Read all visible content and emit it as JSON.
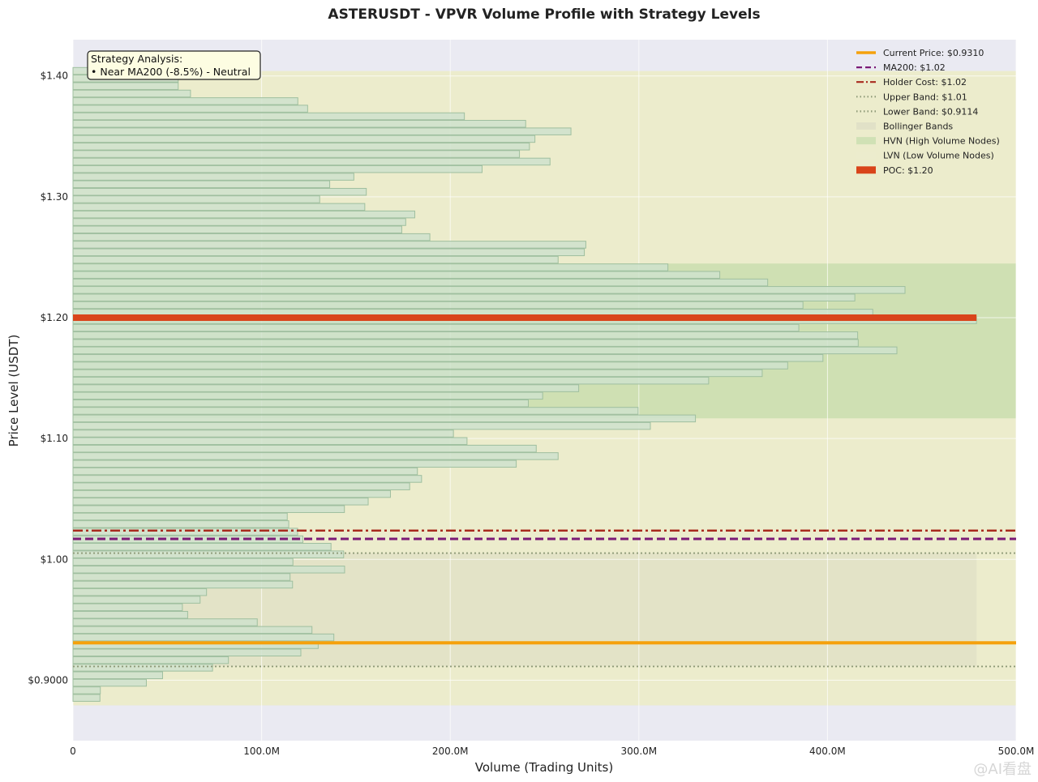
{
  "chart_data": {
    "type": "bar",
    "orientation": "horizontal",
    "title": "ASTERUSDT - VPVR Volume Profile with Strategy Levels",
    "xlabel": "Volume (Trading Units)",
    "ylabel": "Price Level (USDT)",
    "xlim": [
      0,
      500
    ],
    "ylim": [
      0.85,
      1.43
    ],
    "x_unit": "M",
    "x_ticks": [
      {
        "value": 0,
        "label": "0"
      },
      {
        "value": 100,
        "label": "100.0M"
      },
      {
        "value": 200,
        "label": "200.0M"
      },
      {
        "value": 300,
        "label": "300.0M"
      },
      {
        "value": 400,
        "label": "400.0M"
      },
      {
        "value": 500,
        "label": "500.0M"
      }
    ],
    "y_ticks": [
      {
        "value": 0.9,
        "label": "$0.9000"
      },
      {
        "value": 1.0,
        "label": "$1.00"
      },
      {
        "value": 1.1,
        "label": "$1.10"
      },
      {
        "value": 1.2,
        "label": "$1.20"
      },
      {
        "value": 1.3,
        "label": "$1.30"
      },
      {
        "value": 1.4,
        "label": "$1.40"
      }
    ],
    "grid": true,
    "legend_position": "top-right",
    "colors": {
      "plot_bg": "#eaeaf2",
      "lvn": "#ececcc",
      "hvn": "#cfe0b3",
      "bollinger": "#e0e0c6",
      "bar_fill": "#cfe2cd",
      "bar_stroke": "#9fbf9f",
      "current_price": "#f5a10c",
      "ma200": "#7b1a76",
      "holder_cost": "#a82a1e",
      "bands": "#8f9a78",
      "poc": "#d9441a"
    },
    "bin_height": 0.00625,
    "bins": [
      {
        "price": 0.8823,
        "volume": 14.3
      },
      {
        "price": 0.8885,
        "volume": 14.5
      },
      {
        "price": 0.8948,
        "volume": 38.9
      },
      {
        "price": 0.901,
        "volume": 47.5
      },
      {
        "price": 0.9073,
        "volume": 74.0
      },
      {
        "price": 0.9135,
        "volume": 82.4
      },
      {
        "price": 0.9198,
        "volume": 120.8
      },
      {
        "price": 0.926,
        "volume": 130.0
      },
      {
        "price": 0.9323,
        "volume": 138.3
      },
      {
        "price": 0.9385,
        "volume": 126.7
      },
      {
        "price": 0.9448,
        "volume": 97.7
      },
      {
        "price": 0.951,
        "volume": 60.8
      },
      {
        "price": 0.9573,
        "volume": 58.0
      },
      {
        "price": 0.9635,
        "volume": 67.4
      },
      {
        "price": 0.9698,
        "volume": 70.8
      },
      {
        "price": 0.976,
        "volume": 116.4
      },
      {
        "price": 0.9823,
        "volume": 115.1
      },
      {
        "price": 0.9885,
        "volume": 144.0
      },
      {
        "price": 0.9948,
        "volume": 116.6
      },
      {
        "price": 1.001,
        "volume": 143.5
      },
      {
        "price": 1.0073,
        "volume": 136.8
      },
      {
        "price": 1.0135,
        "volume": 121.9
      },
      {
        "price": 1.0198,
        "volume": 119.1
      },
      {
        "price": 1.026,
        "volume": 114.4
      },
      {
        "price": 1.0323,
        "volume": 113.6
      },
      {
        "price": 1.0385,
        "volume": 143.9
      },
      {
        "price": 1.0448,
        "volume": 156.5
      },
      {
        "price": 1.051,
        "volume": 168.3
      },
      {
        "price": 1.0573,
        "volume": 178.5
      },
      {
        "price": 1.0635,
        "volume": 184.8
      },
      {
        "price": 1.0698,
        "volume": 182.6
      },
      {
        "price": 1.076,
        "volume": 235.0
      },
      {
        "price": 1.0823,
        "volume": 257.2
      },
      {
        "price": 1.0885,
        "volume": 245.6
      },
      {
        "price": 1.0948,
        "volume": 208.9
      },
      {
        "price": 1.101,
        "volume": 201.7
      },
      {
        "price": 1.1073,
        "volume": 306.1
      },
      {
        "price": 1.1135,
        "volume": 330.0
      },
      {
        "price": 1.1198,
        "volume": 299.6
      },
      {
        "price": 1.126,
        "volume": 241.4
      },
      {
        "price": 1.1323,
        "volume": 249.0
      },
      {
        "price": 1.1385,
        "volume": 268.1
      },
      {
        "price": 1.1448,
        "volume": 337.0
      },
      {
        "price": 1.151,
        "volume": 365.4
      },
      {
        "price": 1.1573,
        "volume": 378.9
      },
      {
        "price": 1.1635,
        "volume": 397.6
      },
      {
        "price": 1.1698,
        "volume": 436.8
      },
      {
        "price": 1.176,
        "volume": 416.3
      },
      {
        "price": 1.1823,
        "volume": 416.0
      },
      {
        "price": 1.1885,
        "volume": 384.8
      },
      {
        "price": 1.1948,
        "volume": 479.0
      },
      {
        "price": 1.201,
        "volume": 424.0
      },
      {
        "price": 1.2073,
        "volume": 387.0
      },
      {
        "price": 1.2135,
        "volume": 414.5
      },
      {
        "price": 1.2198,
        "volume": 441.1
      },
      {
        "price": 1.226,
        "volume": 368.3
      },
      {
        "price": 1.2323,
        "volume": 342.9
      },
      {
        "price": 1.2385,
        "volume": 315.4
      },
      {
        "price": 1.2448,
        "volume": 257.2
      },
      {
        "price": 1.251,
        "volume": 271.1
      },
      {
        "price": 1.2573,
        "volume": 271.9
      },
      {
        "price": 1.2635,
        "volume": 189.2
      },
      {
        "price": 1.2698,
        "volume": 174.3
      },
      {
        "price": 1.276,
        "volume": 176.4
      },
      {
        "price": 1.2823,
        "volume": 181.2
      },
      {
        "price": 1.2885,
        "volume": 154.7
      },
      {
        "price": 1.2948,
        "volume": 130.8
      },
      {
        "price": 1.301,
        "volume": 155.5
      },
      {
        "price": 1.3073,
        "volume": 136.1
      },
      {
        "price": 1.3135,
        "volume": 148.9
      },
      {
        "price": 1.3198,
        "volume": 216.9
      },
      {
        "price": 1.326,
        "volume": 252.9
      },
      {
        "price": 1.3323,
        "volume": 236.7
      },
      {
        "price": 1.3385,
        "volume": 242.0
      },
      {
        "price": 1.3448,
        "volume": 244.9
      },
      {
        "price": 1.351,
        "volume": 264.0
      },
      {
        "price": 1.3573,
        "volume": 240.0
      },
      {
        "price": 1.3635,
        "volume": 207.5
      },
      {
        "price": 1.3698,
        "volume": 124.4
      },
      {
        "price": 1.376,
        "volume": 119.2
      },
      {
        "price": 1.3823,
        "volume": 62.3
      },
      {
        "price": 1.3885,
        "volume": 55.8
      },
      {
        "price": 1.3948,
        "volume": 55.8
      },
      {
        "price": 1.401,
        "volume": 13.3
      }
    ],
    "zones": [
      {
        "kind": "lvn",
        "y0": 0.8792,
        "y1": 1.4041
      },
      {
        "kind": "hvn",
        "y0": 1.1167,
        "y1": 1.2448
      },
      {
        "kind": "bollinger",
        "y0": 0.9114,
        "y1": 1.0052,
        "x_max": 479
      }
    ],
    "lines": [
      {
        "kind": "current_price",
        "price": 0.931,
        "style": "solid",
        "width": 4
      },
      {
        "kind": "ma200",
        "price": 1.017,
        "style": "dashed",
        "width": 3
      },
      {
        "kind": "holder_cost",
        "price": 1.0238,
        "style": "dashdot",
        "width": 2.5
      },
      {
        "kind": "upper_band",
        "price": 1.0052,
        "style": "dotted",
        "width": 1.8
      },
      {
        "kind": "lower_band",
        "price": 0.9114,
        "style": "dotted",
        "width": 1.8
      },
      {
        "kind": "poc",
        "price": 1.2,
        "style": "bar",
        "width": 8,
        "x_max": 479
      }
    ],
    "legend": [
      {
        "label": "Current Price: $0.9310",
        "swatch": "line",
        "color": "#f5a10c",
        "dash": ""
      },
      {
        "label": "MA200: $1.02",
        "swatch": "line",
        "color": "#7b1a76",
        "dash": "7 4"
      },
      {
        "label": "Holder Cost: $1.02",
        "swatch": "line",
        "color": "#a82a1e",
        "dash": "9 3 2 3"
      },
      {
        "label": "Upper Band: $1.01",
        "swatch": "line",
        "color": "#8f9a78",
        "dash": "1.5 3"
      },
      {
        "label": "Lower Band: $0.9114",
        "swatch": "line",
        "color": "#8f9a78",
        "dash": "1.5 3"
      },
      {
        "label": "Bollinger Bands",
        "swatch": "patch",
        "color": "#e0e0c6"
      },
      {
        "label": "HVN (High Volume Nodes)",
        "swatch": "patch",
        "color": "#cfe0b3"
      },
      {
        "label": "LVN (Low Volume Nodes)",
        "swatch": "patch",
        "color": "#ececcc"
      },
      {
        "label": "POC: $1.20",
        "swatch": "patch",
        "color": "#d9441a"
      }
    ],
    "annotation": {
      "lines": [
        "Strategy Analysis:",
        "• Near MA200 (-8.5%) - Neutral"
      ]
    }
  },
  "watermark": "@AI看盘"
}
